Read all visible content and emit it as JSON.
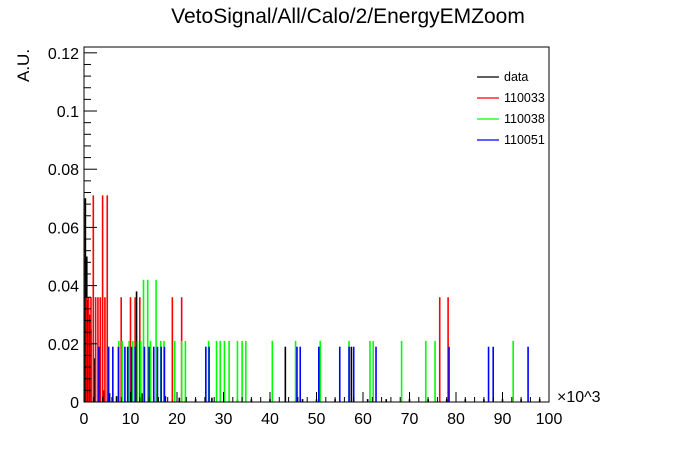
{
  "chart_data": {
    "type": "bar",
    "title": "VetoSignal/All/Calo/2/EnergyEMZoom",
    "xlabel": "",
    "ylabel": "A.U.",
    "x_exponent_label": "×10^3",
    "xlim": [
      0,
      100
    ],
    "ylim": [
      0,
      0.122
    ],
    "x_ticks": [
      "0",
      "10",
      "20",
      "30",
      "40",
      "50",
      "60",
      "70",
      "80",
      "90",
      "100"
    ],
    "y_ticks": [
      "0",
      "0.02",
      "0.04",
      "0.06",
      "0.08",
      "0.1",
      "0.12"
    ],
    "grid": false,
    "legend_position": "top-right",
    "series": [
      {
        "name": "data",
        "color": "#000000",
        "points": [
          [
            0.3,
            0.07
          ],
          [
            0.6,
            0.05
          ],
          [
            0.9,
            0.035
          ],
          [
            1.2,
            0.03
          ],
          [
            1.5,
            0.025
          ],
          [
            2.2,
            0.015
          ],
          [
            3.1,
            0.008
          ],
          [
            4.3,
            0.004
          ],
          [
            5.5,
            0.003
          ],
          [
            7.0,
            0.002
          ],
          [
            9.5,
            0.0015
          ],
          [
            11.3,
            0.038
          ],
          [
            12.5,
            0.003
          ],
          [
            15.0,
            0.002
          ],
          [
            17.5,
            0.002
          ],
          [
            20.5,
            0.0015
          ],
          [
            24.0,
            0.001
          ],
          [
            27.5,
            0.0015
          ],
          [
            33.0,
            0.001
          ],
          [
            36.0,
            0.001
          ],
          [
            40.0,
            0.001
          ],
          [
            43.3,
            0.019
          ],
          [
            47.0,
            0.001
          ],
          [
            50.0,
            0.001
          ],
          [
            54.0,
            0.001
          ],
          [
            57.5,
            0.019
          ],
          [
            61.0,
            0.001
          ],
          [
            65.0,
            0.001
          ],
          [
            70.0,
            0.001
          ],
          [
            74.0,
            0.001
          ],
          [
            78.0,
            0.001
          ],
          [
            82.0,
            0.001
          ],
          [
            86.0,
            0.001
          ],
          [
            90.0,
            0.001
          ],
          [
            94.0,
            0.001
          ],
          [
            98.0,
            0.001
          ]
        ]
      },
      {
        "name": "110033",
        "color": "#ff0000",
        "points": [
          [
            0.5,
            0.036
          ],
          [
            1.0,
            0.036
          ],
          [
            1.5,
            0.036
          ],
          [
            2.0,
            0.071
          ],
          [
            2.5,
            0.036
          ],
          [
            3.0,
            0.036
          ],
          [
            3.5,
            0.036
          ],
          [
            4.0,
            0.071
          ],
          [
            4.5,
            0.036
          ],
          [
            5.0,
            0.071
          ],
          [
            8.0,
            0.036
          ],
          [
            10.0,
            0.036
          ],
          [
            11.0,
            0.036
          ],
          [
            12.0,
            0.036
          ],
          [
            19.0,
            0.036
          ],
          [
            21.0,
            0.036
          ],
          [
            76.5,
            0.036
          ],
          [
            78.3,
            0.036
          ]
        ]
      },
      {
        "name": "110038",
        "color": "#00ff00",
        "points": [
          [
            7.5,
            0.021
          ],
          [
            8.2,
            0.021
          ],
          [
            9.7,
            0.021
          ],
          [
            10.5,
            0.021
          ],
          [
            11.5,
            0.021
          ],
          [
            12.2,
            0.021
          ],
          [
            12.8,
            0.042
          ],
          [
            13.7,
            0.042
          ],
          [
            14.3,
            0.021
          ],
          [
            15.5,
            0.042
          ],
          [
            16.5,
            0.021
          ],
          [
            17.2,
            0.021
          ],
          [
            19.5,
            0.021
          ],
          [
            21.0,
            0.021
          ],
          [
            21.8,
            0.021
          ],
          [
            26.8,
            0.021
          ],
          [
            28.5,
            0.021
          ],
          [
            29.3,
            0.021
          ],
          [
            30.2,
            0.021
          ],
          [
            31.2,
            0.021
          ],
          [
            33.0,
            0.021
          ],
          [
            34.0,
            0.021
          ],
          [
            34.8,
            0.021
          ],
          [
            40.5,
            0.021
          ],
          [
            45.5,
            0.021
          ],
          [
            50.8,
            0.021
          ],
          [
            57.0,
            0.021
          ],
          [
            61.5,
            0.021
          ],
          [
            62.2,
            0.021
          ],
          [
            68.3,
            0.021
          ],
          [
            73.5,
            0.021
          ],
          [
            75.5,
            0.021
          ],
          [
            92.3,
            0.021
          ]
        ]
      },
      {
        "name": "110051",
        "color": "#0000ff",
        "points": [
          [
            3.2,
            0.019
          ],
          [
            5.3,
            0.019
          ],
          [
            6.2,
            0.019
          ],
          [
            7.4,
            0.019
          ],
          [
            8.8,
            0.019
          ],
          [
            9.4,
            0.019
          ],
          [
            10.2,
            0.019
          ],
          [
            11.0,
            0.019
          ],
          [
            13.0,
            0.019
          ],
          [
            14.0,
            0.019
          ],
          [
            15.0,
            0.019
          ],
          [
            15.8,
            0.019
          ],
          [
            16.6,
            0.019
          ],
          [
            17.3,
            0.019
          ],
          [
            26.2,
            0.019
          ],
          [
            26.9,
            0.019
          ],
          [
            45.8,
            0.019
          ],
          [
            46.5,
            0.019
          ],
          [
            50.5,
            0.019
          ],
          [
            55.0,
            0.019
          ],
          [
            57.0,
            0.019
          ],
          [
            58.0,
            0.019
          ],
          [
            62.8,
            0.019
          ],
          [
            78.5,
            0.019
          ],
          [
            87.0,
            0.019
          ],
          [
            88.0,
            0.019
          ],
          [
            95.5,
            0.019
          ]
        ]
      }
    ]
  }
}
